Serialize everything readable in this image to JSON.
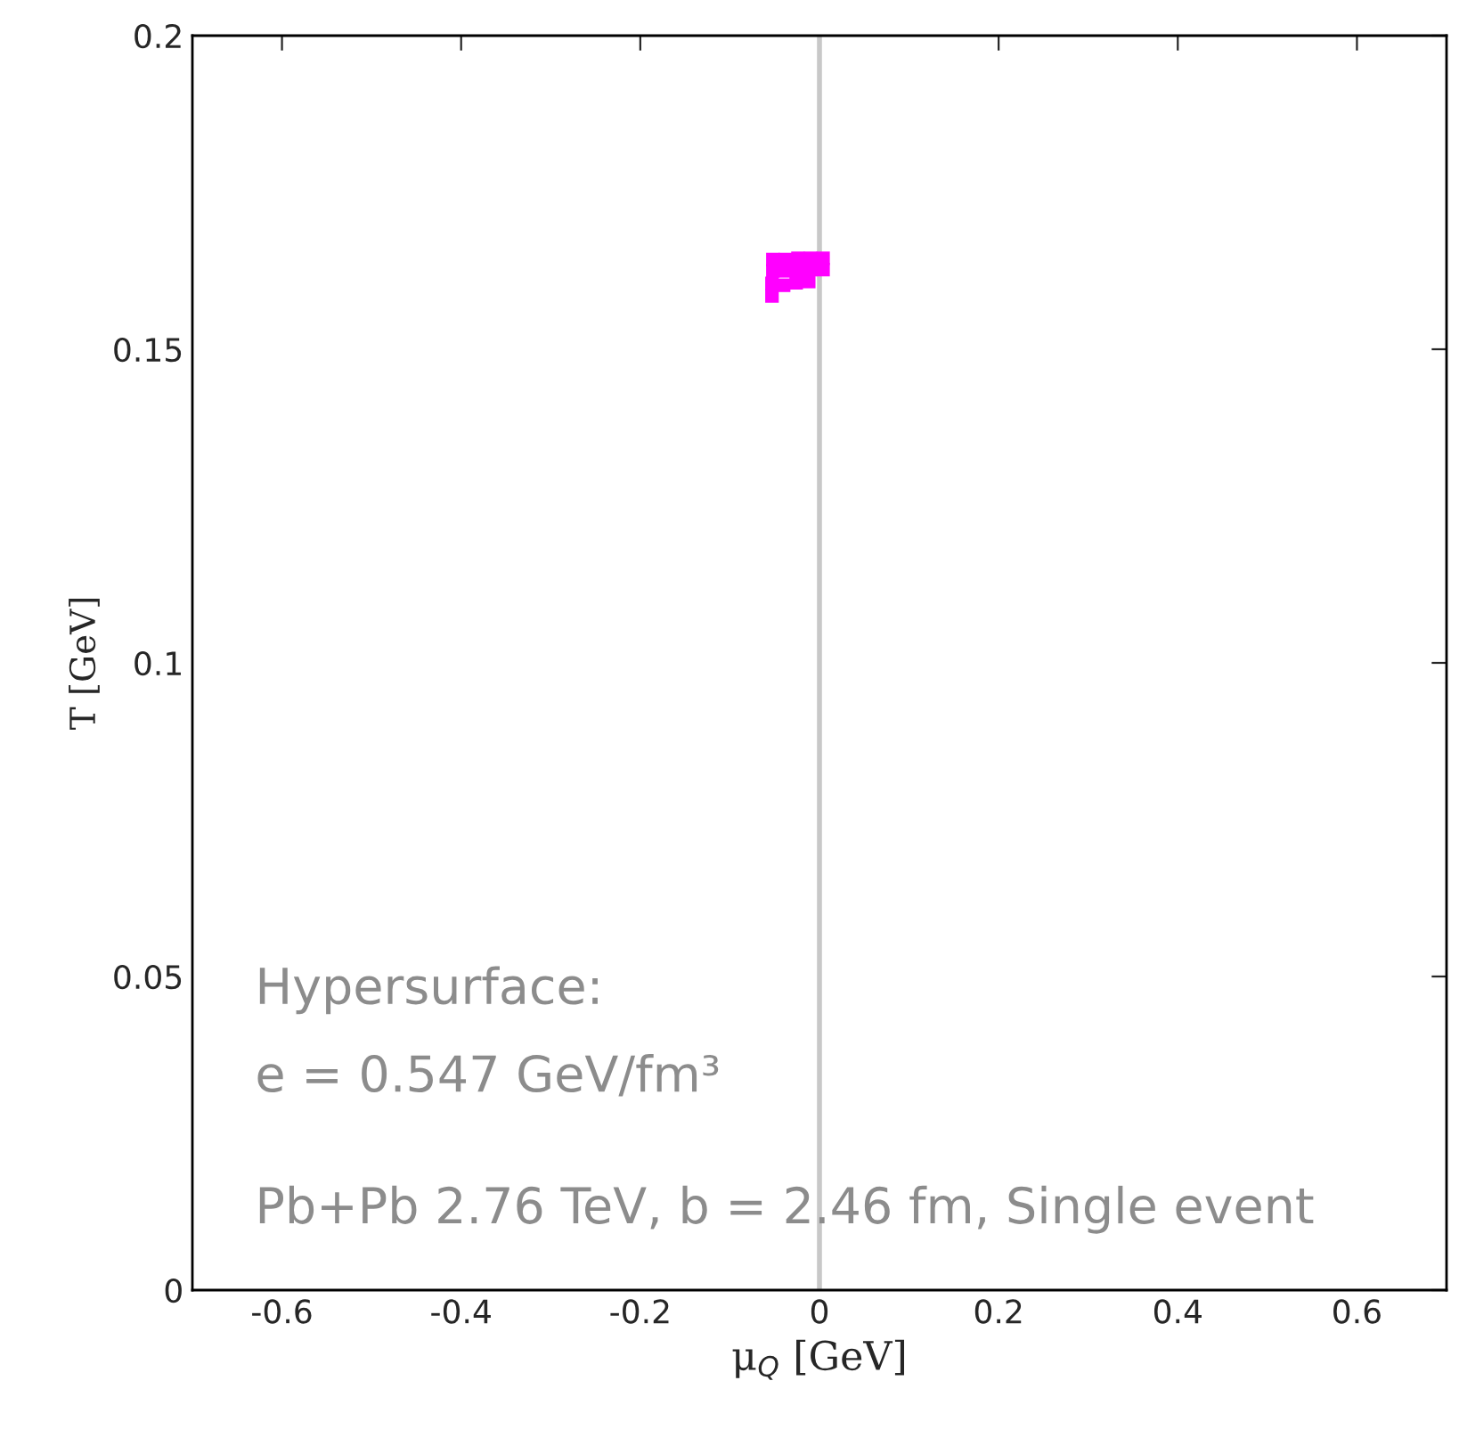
{
  "chart_data": {
    "type": "scatter",
    "xlabel": "μ$_{Q}$ [GeV]",
    "ylabel": "T [GeV]",
    "xlim": [
      -0.7,
      0.7
    ],
    "xticks": [
      -0.6,
      -0.4,
      -0.2,
      0,
      0.2,
      0.4,
      0.6
    ],
    "ylim": [
      0,
      0.2
    ],
    "yticks": [
      0,
      0.05,
      0.1,
      0.15,
      0.2
    ],
    "grid": false,
    "marker": "square",
    "ref_lines": [
      {
        "axis": "x",
        "value": 0,
        "color": "#c8c8c8"
      }
    ],
    "annotations": [
      "Hypersurface:",
      "e = 0.547 GeV/fm³",
      "Pb+Pb 2.76 TeV, b = 2.46 fm, Single event"
    ],
    "series": [
      {
        "color": "#ff00ff",
        "x": [
          -0.052,
          -0.038,
          -0.024,
          -0.01,
          0.004,
          -0.052,
          -0.038,
          -0.024,
          -0.01,
          0.004,
          -0.053,
          -0.053,
          -0.04,
          -0.026,
          -0.012
        ],
        "values": [
          0.1643,
          0.1643,
          0.1645,
          0.1645,
          0.1645,
          0.1625,
          0.1625,
          0.1625,
          0.1627,
          0.1627,
          0.1605,
          0.1585,
          0.1602,
          0.1606,
          0.1608
        ]
      }
    ]
  }
}
